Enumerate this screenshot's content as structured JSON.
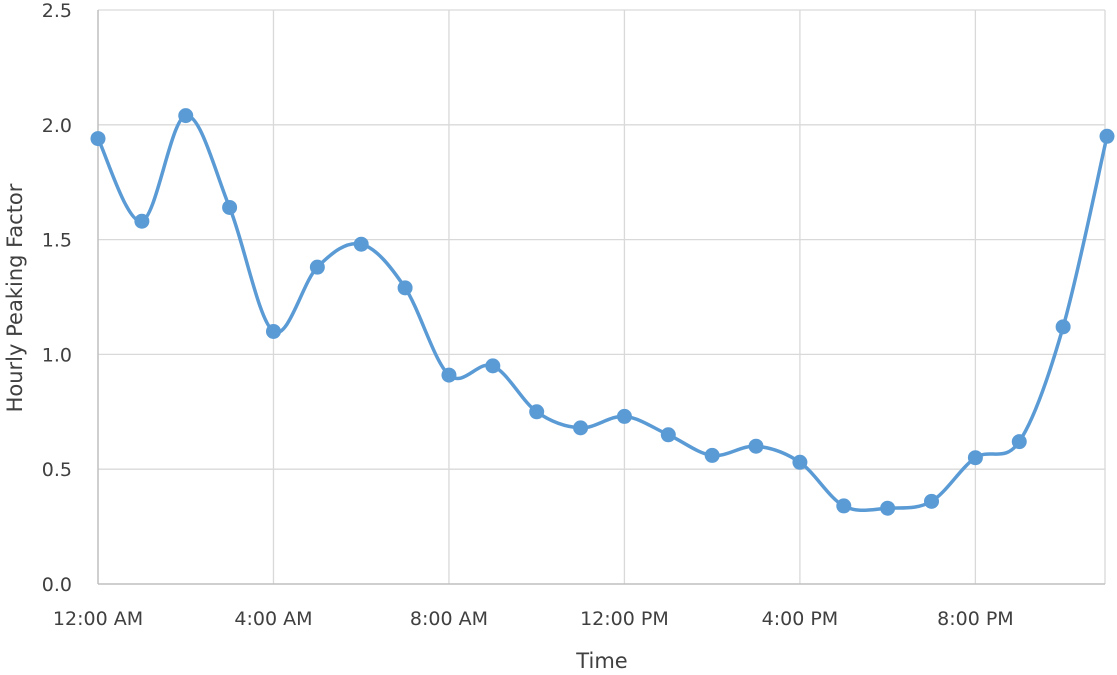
{
  "chart_data": {
    "type": "line",
    "smooth": true,
    "title": "",
    "xlabel": "Time",
    "ylabel": "Hourly Peaking Factor",
    "x_tick_labels": [
      "12:00 AM",
      "4:00 AM",
      "8:00 AM",
      "12:00 PM",
      "4:00 PM",
      "8:00 PM"
    ],
    "x_hours": [
      0,
      1,
      2,
      3,
      4,
      5,
      6,
      7,
      8,
      9,
      10,
      11,
      12,
      13,
      14,
      15,
      16,
      17,
      18,
      19,
      20,
      21,
      22,
      23
    ],
    "xlim_hours": [
      0,
      23
    ],
    "y_tick_labels": [
      "0.0",
      "0.5",
      "1.0",
      "1.5",
      "2.0",
      "2.5"
    ],
    "ylim": [
      0,
      2.5
    ],
    "grid": true,
    "legend": "none",
    "series": [
      {
        "color": "#5b9bd5",
        "values": [
          1.94,
          1.58,
          2.04,
          1.64,
          1.1,
          1.38,
          1.48,
          1.29,
          0.91,
          0.95,
          0.75,
          0.68,
          0.73,
          0.65,
          0.56,
          0.6,
          0.53,
          0.34,
          0.33,
          0.36,
          0.55,
          0.62,
          1.12,
          1.95
        ]
      }
    ]
  }
}
